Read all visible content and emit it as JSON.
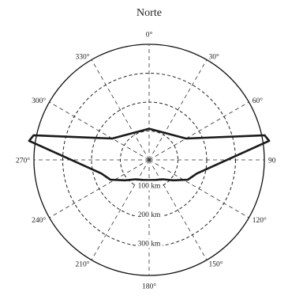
{
  "diagram": {
    "title": "Norte",
    "angle_labels": [
      {
        "angle": 0,
        "text": "0°"
      },
      {
        "angle": 30,
        "text": "30°"
      },
      {
        "angle": 60,
        "text": "60°"
      },
      {
        "angle": 90,
        "text": "90"
      },
      {
        "angle": 120,
        "text": "120°"
      },
      {
        "angle": 150,
        "text": "150°"
      },
      {
        "angle": 180,
        "text": "180°"
      },
      {
        "angle": 210,
        "text": "210°"
      },
      {
        "angle": 240,
        "text": "240°"
      },
      {
        "angle": 270,
        "text": "270°"
      },
      {
        "angle": 300,
        "text": "300°"
      },
      {
        "angle": 330,
        "text": "330°"
      }
    ],
    "range_labels": [
      {
        "km": 100,
        "text": "100 km"
      },
      {
        "km": 200,
        "text": "200 km"
      },
      {
        "km": 300,
        "text": "300 km"
      }
    ],
    "max_range_km": 400,
    "coverage": [
      {
        "bearing": 0,
        "km": 108
      },
      {
        "bearing": 60,
        "km": 148
      },
      {
        "bearing": 78,
        "km": 410
      },
      {
        "bearing": 81,
        "km": 422
      },
      {
        "bearing": 106,
        "km": 172
      },
      {
        "bearing": 117,
        "km": 151
      },
      {
        "bearing": 130,
        "km": 110
      },
      {
        "bearing": 145,
        "km": 82
      },
      {
        "bearing": 162,
        "km": 73
      },
      {
        "bearing": 180,
        "km": 70
      },
      {
        "bearing": 198,
        "km": 73
      },
      {
        "bearing": 215,
        "km": 82
      },
      {
        "bearing": 230,
        "km": 110
      },
      {
        "bearing": 243,
        "km": 151
      },
      {
        "bearing": 254,
        "km": 172
      },
      {
        "bearing": 279,
        "km": 422
      },
      {
        "bearing": 282,
        "km": 410
      },
      {
        "bearing": 300,
        "km": 148
      },
      {
        "bearing": 360,
        "km": 108
      }
    ]
  }
}
